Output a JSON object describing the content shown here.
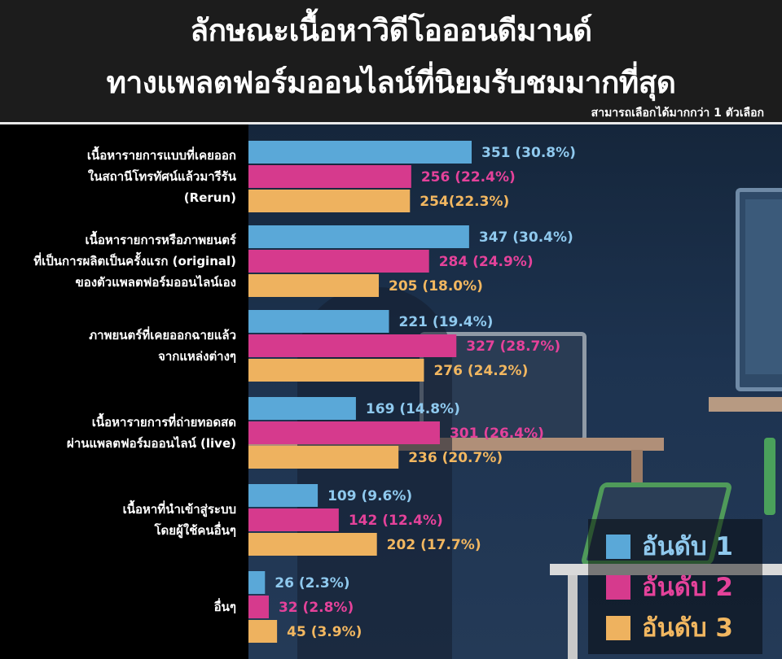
{
  "header": {
    "title_line1": "ลักษณะเนื้อหาวิดีโอออนดีมานด์",
    "title_line2": "ทางแพลตฟอร์มออนไลน์ที่นิยมรับชมมากที่สุด",
    "subtitle": "สามารถเลือกได้มากกว่า 1 ตัวเลือก"
  },
  "colors": {
    "rank1": "#5aa8d8",
    "rank2": "#d63a8d",
    "rank3": "#eeb25f",
    "label_rank1": "#8fc9ee",
    "label_rank2": "#e4429a",
    "label_rank3": "#f2b760"
  },
  "chart_data": {
    "type": "bar",
    "orientation": "horizontal",
    "title": "ลักษณะเนื้อหาวิดีโอออนดีมานด์ทางแพลตฟอร์มออนไลน์ที่นิยมรับชมมากที่สุด",
    "categories": [
      [
        "เนื้อหารายการแบบที่เคยออก",
        "ในสถานีโทรทัศน์แล้วมารีรัน",
        "(Rerun)"
      ],
      [
        "เนื้อหารายการหรือภาพยนตร์",
        "ที่เป็นการผลิตเป็นครั้งแรก (original)",
        "ของตัวแพลตฟอร์มออนไลน์เอง"
      ],
      [
        "ภาพยนตร์ที่เคยออกฉายแล้ว",
        "จากแหล่งต่างๆ"
      ],
      [
        "เนื้อหารายการที่ถ่ายทอดสด",
        "ผ่านแพลตฟอร์มออนไลน์ (live)"
      ],
      [
        "เนื้อหาที่นำเข้าสู่ระบบ",
        "โดยผู้ใช้คนอื่นๆ"
      ],
      [
        "อื่นๆ"
      ]
    ],
    "series": [
      {
        "name": "อันดับ 1",
        "values": [
          351,
          347,
          221,
          169,
          109,
          26
        ],
        "labels": [
          "351 (30.8%)",
          "347 (30.4%)",
          "221 (19.4%)",
          "169 (14.8%)",
          "109 (9.6%)",
          "26 (2.3%)"
        ]
      },
      {
        "name": "อันดับ 2",
        "values": [
          256,
          284,
          327,
          301,
          142,
          32
        ],
        "labels": [
          "256 (22.4%)",
          "284 (24.9%)",
          "327 (28.7%)",
          "301 (26.4%)",
          "142 (12.4%)",
          "32 (2.8%)"
        ]
      },
      {
        "name": "อันดับ 3",
        "values": [
          254,
          205,
          276,
          236,
          202,
          45
        ],
        "labels": [
          "254(22.3%)",
          "205 (18.0%)",
          "276 (24.2%)",
          "236 (20.7%)",
          "202 (17.7%)",
          "45 (3.9%)"
        ]
      }
    ],
    "xlim": [
      0,
      351
    ],
    "grid": false,
    "legend_position": "bottom-right"
  }
}
